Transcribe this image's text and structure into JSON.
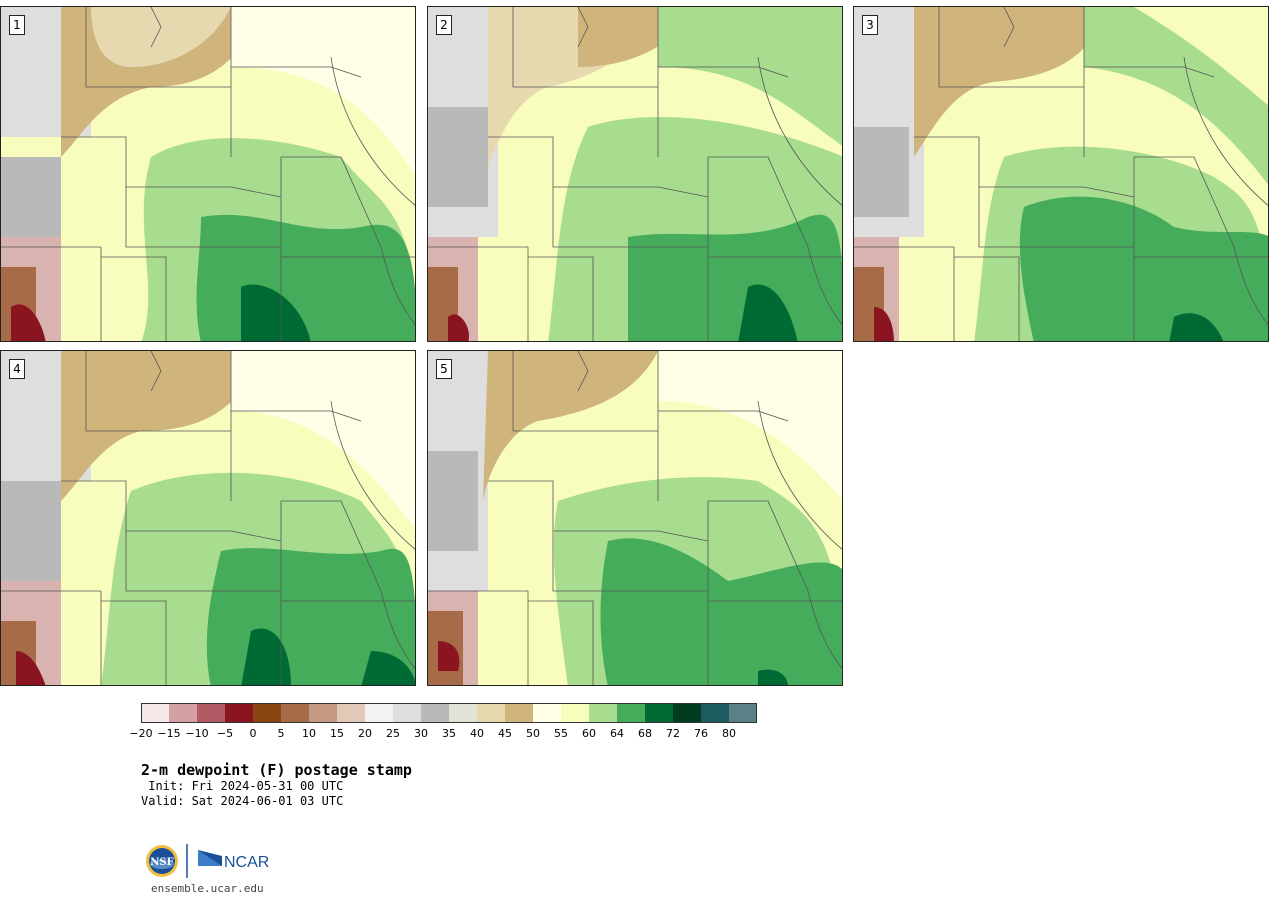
{
  "panels": [
    {
      "label": "1"
    },
    {
      "label": "2"
    },
    {
      "label": "3"
    },
    {
      "label": "4"
    },
    {
      "label": "5"
    }
  ],
  "colorbar": {
    "colors": [
      "#f5e6e8",
      "#d4a0a6",
      "#b05a63",
      "#8a1520",
      "#8a4510",
      "#a86b48",
      "#c49a82",
      "#e2c8b6",
      "#f2f2f2",
      "#dedede",
      "#b9b9b9",
      "#e3e2d6",
      "#e6d9b0",
      "#cfb57b",
      "#fffee6",
      "#f8fcbc",
      "#a8dc8e",
      "#45ac5c",
      "#006a34",
      "#003c20",
      "#1c5c60",
      "#5a8088"
    ],
    "ticks": [
      "−20",
      "−15",
      "−10",
      "−5",
      "0",
      "5",
      "10",
      "15",
      "20",
      "25",
      "30",
      "35",
      "40",
      "45",
      "50",
      "55",
      "60",
      "64",
      "68",
      "72",
      "76",
      "80"
    ]
  },
  "title": "2-m dewpoint (F) postage stamp",
  "init": " Init: Fri 2024-05-31 00 UTC",
  "valid": "Valid: Sat 2024-06-01 03 UTC",
  "logos": {
    "nsf": "NSF",
    "ncar": "NCAR"
  },
  "site": "ensemble.ucar.edu"
}
